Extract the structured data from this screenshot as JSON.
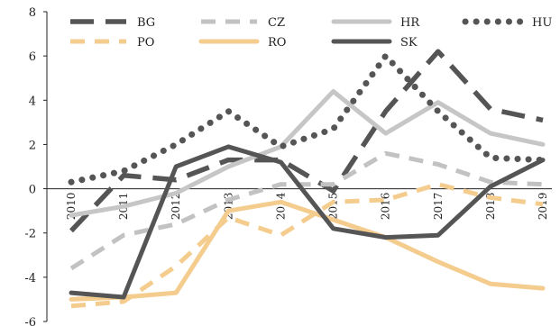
{
  "chart_data": {
    "type": "line",
    "title": "",
    "xlabel": "",
    "ylabel": "",
    "x": [
      "2010",
      "2011",
      "2012",
      "2013",
      "2014",
      "2015",
      "2016",
      "2017",
      "2018",
      "2019"
    ],
    "ylim": [
      -6,
      8
    ],
    "yticks": [
      "8",
      "6",
      "4",
      "2",
      "0",
      "-2",
      "-4",
      "-6"
    ],
    "grid": false,
    "legend": "top",
    "series": [
      {
        "name": "BG",
        "color": "#555555",
        "style": "long-dash",
        "values": [
          -1.9,
          0.6,
          0.4,
          1.3,
          1.3,
          -0.1,
          3.5,
          6.2,
          3.6,
          3.1
        ]
      },
      {
        "name": "CZ",
        "color": "#c2c2c2",
        "style": "dash",
        "values": [
          -3.6,
          -2.1,
          -1.6,
          -0.5,
          0.2,
          0.2,
          1.6,
          1.1,
          0.3,
          0.2
        ]
      },
      {
        "name": "HR",
        "color": "#c6c6c6",
        "style": "solid",
        "values": [
          -1.2,
          -0.8,
          -0.2,
          1.0,
          1.9,
          4.4,
          2.5,
          3.9,
          2.5,
          2.0
        ]
      },
      {
        "name": "HU",
        "color": "#555555",
        "style": "dotted",
        "values": [
          0.3,
          0.8,
          2.0,
          3.5,
          1.9,
          2.7,
          6.0,
          3.5,
          1.4,
          1.3
        ]
      },
      {
        "name": "PO",
        "color": "#f4cc8e",
        "style": "dash",
        "values": [
          -5.3,
          -5.1,
          -3.5,
          -1.3,
          -2.1,
          -0.6,
          -0.5,
          0.2,
          -0.4,
          -0.7
        ]
      },
      {
        "name": "RO",
        "color": "#f4cc8e",
        "style": "solid",
        "values": [
          -5.0,
          -4.9,
          -4.7,
          -1.0,
          -0.6,
          -1.4,
          -2.2,
          -3.3,
          -4.3,
          -4.5
        ]
      },
      {
        "name": "SK",
        "color": "#555555",
        "style": "solid",
        "values": [
          -4.7,
          -4.9,
          1.0,
          1.9,
          1.2,
          -1.8,
          -2.2,
          -2.1,
          0.1,
          1.3
        ]
      }
    ]
  }
}
